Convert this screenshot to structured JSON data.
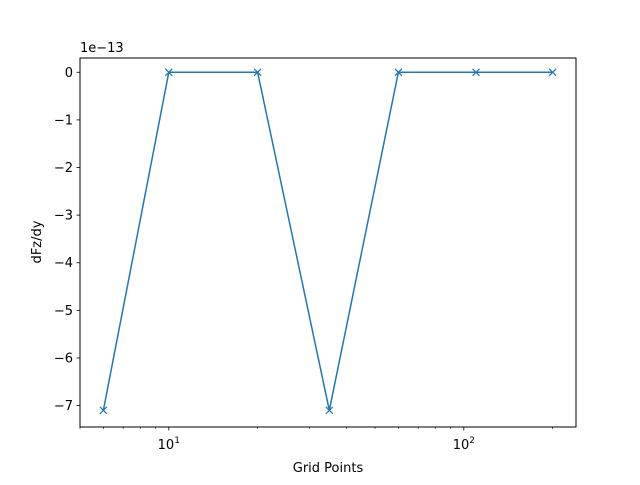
{
  "chart_data": {
    "type": "line",
    "x_scale": "log",
    "marker": "x",
    "color": "#1f77b4",
    "xlabel": "Grid Points",
    "ylabel": "dFz/dy",
    "offset_label": "1e−13",
    "x_major_ticks": [
      {
        "value": 10,
        "base": "10",
        "exp": "1"
      },
      {
        "value": 100,
        "base": "10",
        "exp": "2"
      }
    ],
    "y_ticks": [
      {
        "value": 0,
        "label": "0"
      },
      {
        "value": -1,
        "label": "−1"
      },
      {
        "value": -2,
        "label": "−2"
      },
      {
        "value": -3,
        "label": "−3"
      },
      {
        "value": -4,
        "label": "−4"
      },
      {
        "value": -5,
        "label": "−5"
      },
      {
        "value": -6,
        "label": "−6"
      },
      {
        "value": -7,
        "label": "−7"
      }
    ],
    "xlim": [
      5,
      240
    ],
    "ylim": [
      -7.45,
      0.3
    ],
    "grid": false,
    "series": [
      {
        "x": [
          6,
          10,
          20,
          35,
          60,
          110,
          200
        ],
        "y": [
          -7.1,
          0,
          0,
          -7.1,
          0,
          0,
          0
        ]
      }
    ]
  }
}
